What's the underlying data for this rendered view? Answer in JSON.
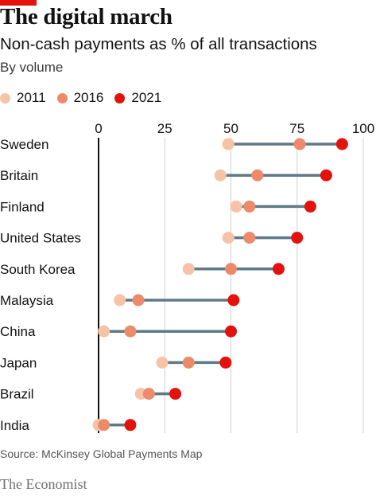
{
  "header": {
    "title": "The digital march",
    "subtitle": "Non-cash payments as % of all transactions",
    "subsubtitle": "By volume"
  },
  "colors": {
    "accent": "#e3120b",
    "connector": "#5e7a87",
    "zero_line": "#121212",
    "grid": "#d0d0d0"
  },
  "legend": [
    {
      "label": "2011",
      "color": "#f7c3a6"
    },
    {
      "label": "2016",
      "color": "#ec8a69"
    },
    {
      "label": "2021",
      "color": "#e3120b"
    }
  ],
  "chart_data": {
    "type": "dot-range",
    "title": "The digital march",
    "subtitle": "Non-cash payments as % of all transactions",
    "note": "By volume",
    "categories": [
      "Sweden",
      "Britain",
      "Finland",
      "United States",
      "South Korea",
      "Malaysia",
      "China",
      "Japan",
      "Brazil",
      "India"
    ],
    "series": [
      {
        "name": "2011",
        "values": [
          49,
          46,
          52,
          49,
          34,
          8,
          2,
          24,
          16,
          0
        ]
      },
      {
        "name": "2016",
        "values": [
          76,
          60,
          57,
          57,
          50,
          15,
          12,
          34,
          19,
          2
        ]
      },
      {
        "name": "2021",
        "values": [
          92,
          86,
          80,
          75,
          68,
          51,
          50,
          48,
          29,
          12
        ]
      }
    ],
    "xlim": [
      0,
      100
    ],
    "xticks": [
      "0",
      "25",
      "50",
      "75",
      "100"
    ],
    "x_tick_values": [
      0,
      25,
      50,
      75,
      100
    ],
    "grid": true,
    "legend_position": "top-left"
  },
  "footer": {
    "source": "Source: McKinsey Global Payments Map",
    "brand": "The Economist"
  }
}
